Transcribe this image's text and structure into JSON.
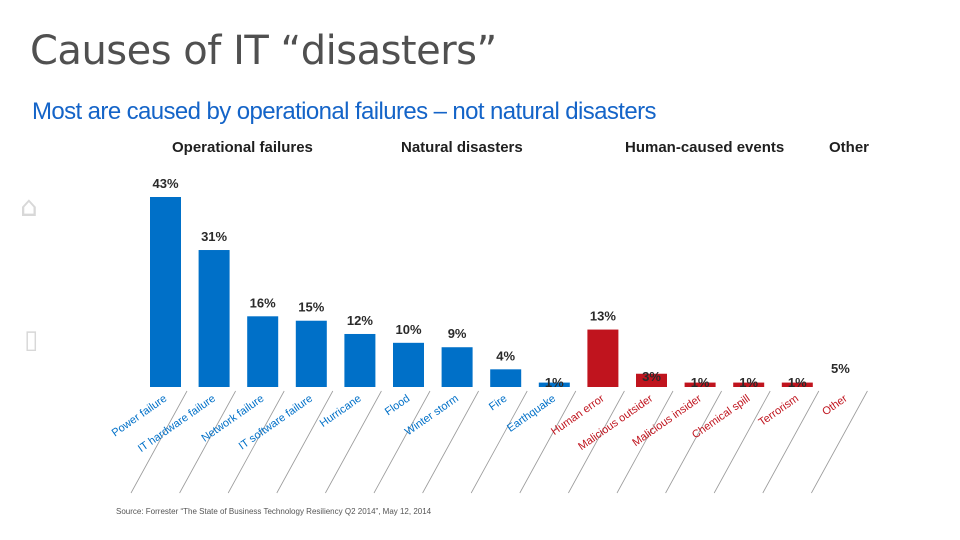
{
  "slide": {
    "title": "Causes of IT “disasters”",
    "subtitle": "Most are caused by operational failures – not natural disasters",
    "source": "Source: Forrester “The State of Business Technology Resiliency Q2 2014”, May 12, 2014"
  },
  "colors": {
    "operational": "#0070c8",
    "natural": "#0070c8",
    "human": "#c0141e",
    "other": "#c0141e",
    "title": "#505050",
    "subtitle": "#1464c8"
  },
  "chart_data": {
    "type": "bar",
    "title": "Most are caused by operational failures – not natural disasters",
    "xlabel": "",
    "ylabel": "",
    "ylim": [
      0,
      45
    ],
    "group_headers": [
      "Operational failures",
      "Natural disasters",
      "Human-caused events",
      "Other"
    ],
    "categories": [
      "Power failure",
      "IT hardware failure",
      "Network failure",
      "IT software failure",
      "Hurricane",
      "Flood",
      "Winter storm",
      "Fire",
      "Earthquake",
      "Human error",
      "Malicious outsider",
      "Malicious insider",
      "Chemical spill",
      "Terrorism",
      "Other"
    ],
    "values": [
      43,
      31,
      16,
      15,
      12,
      10,
      9,
      4,
      1,
      13,
      3,
      1,
      1,
      1,
      5
    ],
    "value_labels": [
      "43%",
      "31%",
      "16%",
      "15%",
      "12%",
      "10%",
      "9%",
      "4%",
      "1%",
      "13%",
      "3%",
      "1%",
      "1%",
      "1%",
      "5%"
    ],
    "groups": [
      "operational",
      "operational",
      "operational",
      "operational",
      "natural",
      "natural",
      "natural",
      "natural",
      "natural",
      "human",
      "human",
      "human",
      "human",
      "human",
      "other"
    ]
  }
}
